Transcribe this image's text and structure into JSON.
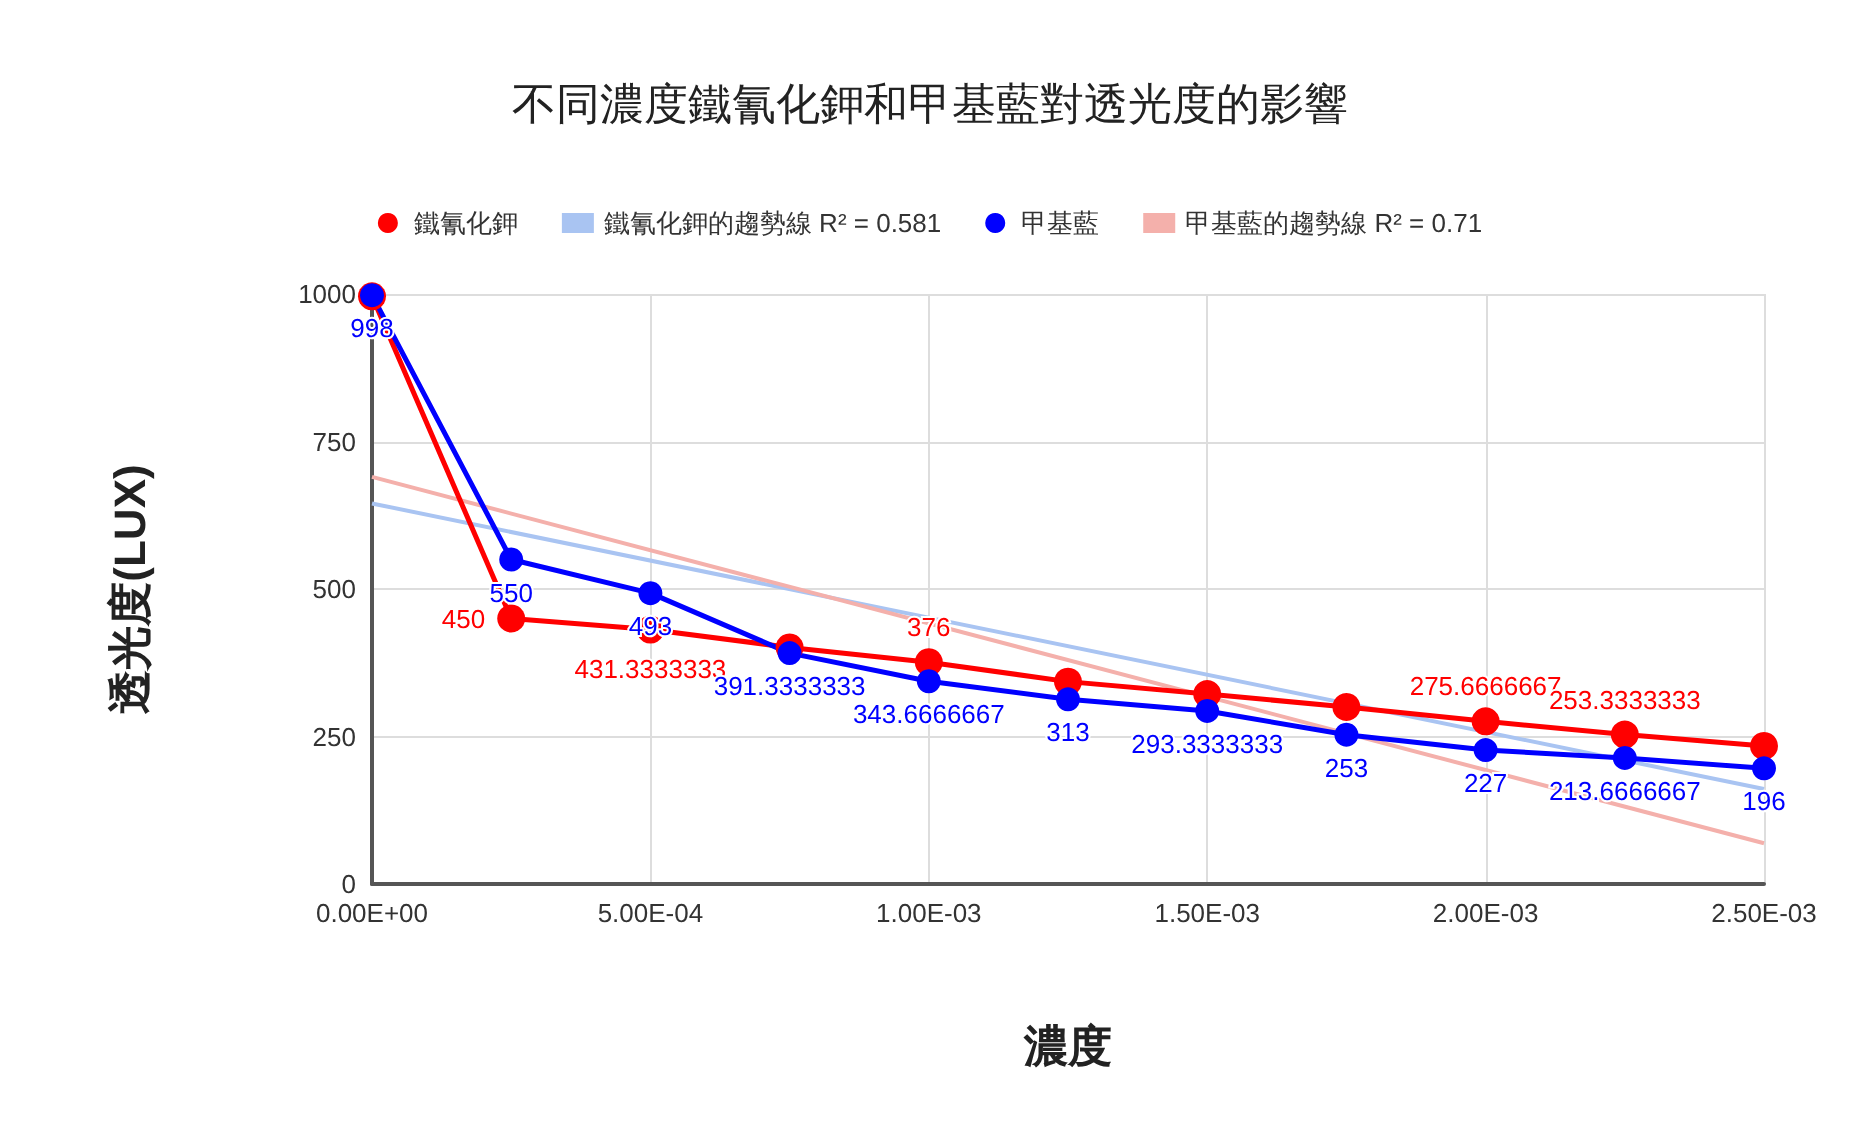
{
  "chart_data": {
    "type": "line",
    "title": "不同濃度鐵氰化鉀和甲基藍對透光度的影響",
    "xlabel": "濃度",
    "ylabel": "透光度(LUX)",
    "x": [
      0,
      0.00025,
      0.0005,
      0.00075,
      0.001,
      0.00125,
      0.0015,
      0.00175,
      0.002,
      0.00225,
      0.0025
    ],
    "series": [
      {
        "name": "鐵氰化鉀",
        "color": "#ff0000",
        "marker": "circle",
        "values": [
          996,
          450,
          431.3333333,
          401,
          376,
          343,
          322,
          300,
          275.6666667,
          253.3333333,
          234
        ],
        "value_labels": [
          null,
          "450",
          "431.3333333",
          null,
          "376",
          null,
          null,
          null,
          "275.6666667",
          "253.3333333",
          null
        ]
      },
      {
        "name": "鐵氰化鉀的趨勢線 R² = 0.581",
        "color": "#a9c4f2",
        "marker": "none",
        "values": [
          645,
          null,
          null,
          null,
          null,
          null,
          null,
          null,
          null,
          null,
          161
        ]
      },
      {
        "name": "甲基藍",
        "color": "#0000ff",
        "marker": "circle",
        "values": [
          998,
          550,
          493,
          391.3333333,
          343.6666667,
          313,
          293.3333333,
          253,
          227,
          213.6666667,
          196
        ],
        "value_labels": [
          "998",
          "550",
          "493",
          "391.3333333",
          "343.6666667",
          "313",
          "293.3333333",
          "253",
          "227",
          "213.6666667",
          "196"
        ]
      },
      {
        "name": "甲基藍的趨勢線 R² = 0.71",
        "color": "#f4b0ab",
        "marker": "none",
        "values": [
          690,
          null,
          null,
          null,
          null,
          null,
          null,
          null,
          null,
          null,
          69
        ]
      }
    ],
    "legend": "top",
    "grid": true,
    "xlim": [
      0,
      0.0025
    ],
    "xticks": [
      {
        "value": 0,
        "label": "0.00E+00"
      },
      {
        "value": 0.0005,
        "label": "5.00E-04"
      },
      {
        "value": 0.001,
        "label": "1.00E-03"
      },
      {
        "value": 0.0015,
        "label": "1.50E-03"
      },
      {
        "value": 0.002,
        "label": "2.00E-03"
      },
      {
        "value": 0.0025,
        "label": "2.50E-03"
      }
    ],
    "ylim": [
      0,
      1000
    ],
    "yticks": [
      0,
      250,
      500,
      750,
      1000
    ]
  }
}
